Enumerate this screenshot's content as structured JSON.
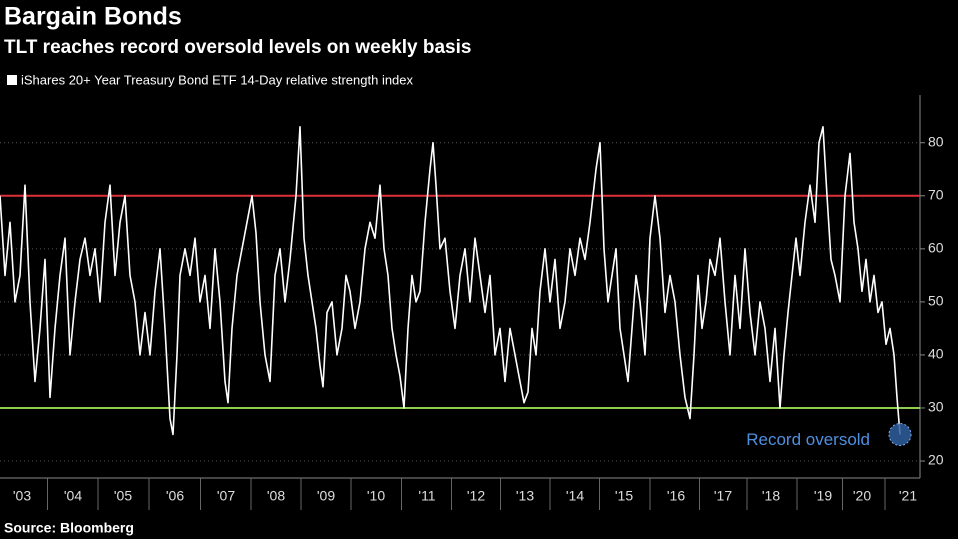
{
  "chart_data": {
    "type": "line",
    "title": "Bargain Bonds",
    "subtitle": "TLT reaches record oversold levels on weekly basis",
    "source": "Source: Bloomberg",
    "x": [
      2002.95,
      2003.05,
      2003.15,
      2003.25,
      2003.35,
      2003.45,
      2003.55,
      2003.65,
      2003.75,
      2003.85,
      2003.95,
      2004.05,
      2004.15,
      2004.25,
      2004.35,
      2004.45,
      2004.55,
      2004.65,
      2004.75,
      2004.85,
      2004.95,
      2005.05,
      2005.15,
      2005.25,
      2005.35,
      2005.45,
      2005.55,
      2005.65,
      2005.75,
      2005.85,
      2005.95,
      2006.05,
      2006.15,
      2006.25,
      2006.35,
      2006.41,
      2006.49,
      2006.55,
      2006.65,
      2006.75,
      2006.85,
      2006.95,
      2007.05,
      2007.15,
      2007.25,
      2007.35,
      2007.45,
      2007.51,
      2007.59,
      2007.69,
      2007.79,
      2007.89,
      2007.99,
      2008.07,
      2008.15,
      2008.25,
      2008.35,
      2008.45,
      2008.55,
      2008.65,
      2008.75,
      2008.87,
      2008.95,
      2009.03,
      2009.11,
      2009.19,
      2009.27,
      2009.35,
      2009.41,
      2009.49,
      2009.59,
      2009.69,
      2009.79,
      2009.87,
      2009.95,
      2010.05,
      2010.15,
      2010.25,
      2010.35,
      2010.45,
      2010.55,
      2010.63,
      2010.71,
      2010.79,
      2010.87,
      2010.95,
      2011.03,
      2011.11,
      2011.19,
      2011.27,
      2011.35,
      2011.45,
      2011.55,
      2011.61,
      2011.67,
      2011.75,
      2011.85,
      2011.95,
      2012.05,
      2012.15,
      2012.25,
      2012.35,
      2012.45,
      2012.55,
      2012.65,
      2012.75,
      2012.85,
      2012.95,
      2013.05,
      2013.15,
      2013.25,
      2013.35,
      2013.43,
      2013.51,
      2013.59,
      2013.67,
      2013.75,
      2013.85,
      2013.95,
      2014.05,
      2014.15,
      2014.25,
      2014.35,
      2014.45,
      2014.55,
      2014.65,
      2014.75,
      2014.87,
      2014.95,
      2015.03,
      2015.11,
      2015.19,
      2015.27,
      2015.35,
      2015.43,
      2015.51,
      2015.59,
      2015.67,
      2015.75,
      2015.85,
      2015.95,
      2016.05,
      2016.15,
      2016.25,
      2016.35,
      2016.45,
      2016.55,
      2016.65,
      2016.75,
      2016.83,
      2016.91,
      2016.99,
      2017.07,
      2017.15,
      2017.25,
      2017.35,
      2017.45,
      2017.55,
      2017.65,
      2017.75,
      2017.85,
      2017.95,
      2018.05,
      2018.15,
      2018.25,
      2018.35,
      2018.45,
      2018.55,
      2018.63,
      2018.71,
      2018.79,
      2018.87,
      2018.95,
      2019.05,
      2019.15,
      2019.25,
      2019.33,
      2019.41,
      2019.49,
      2019.57,
      2019.65,
      2019.75,
      2019.85,
      2019.95,
      2020.03,
      2020.11,
      2020.19,
      2020.27,
      2020.35,
      2020.43,
      2020.51,
      2020.59,
      2020.67,
      2020.75,
      2020.83,
      2020.89,
      2020.95
    ],
    "series": [
      {
        "name": "iShares 20+ Year Treasury Bond ETF 14-Day relative strength index",
        "color": "#ffffff",
        "values": [
          70,
          55,
          65,
          50,
          55,
          72,
          50,
          35,
          45,
          58,
          32,
          45,
          55,
          62,
          40,
          50,
          58,
          62,
          55,
          60,
          50,
          65,
          72,
          55,
          65,
          70,
          55,
          50,
          40,
          48,
          40,
          52,
          60,
          45,
          28,
          25,
          40,
          55,
          60,
          55,
          62,
          50,
          55,
          45,
          60,
          50,
          35,
          31,
          45,
          55,
          60,
          65,
          70,
          63,
          50,
          40,
          35,
          55,
          60,
          50,
          58,
          70,
          83,
          62,
          55,
          50,
          45,
          38,
          34,
          48,
          50,
          40,
          45,
          55,
          52,
          45,
          50,
          60,
          65,
          62,
          72,
          60,
          55,
          45,
          40,
          36,
          30,
          45,
          55,
          50,
          52,
          65,
          75,
          80,
          72,
          60,
          62,
          52,
          45,
          55,
          60,
          50,
          62,
          55,
          48,
          55,
          40,
          45,
          35,
          45,
          40,
          35,
          31,
          33,
          45,
          40,
          52,
          60,
          50,
          58,
          45,
          50,
          60,
          55,
          62,
          58,
          65,
          75,
          80,
          60,
          50,
          55,
          60,
          45,
          40,
          35,
          45,
          55,
          50,
          40,
          62,
          70,
          62,
          48,
          55,
          50,
          40,
          32,
          28,
          40,
          55,
          45,
          50,
          58,
          55,
          62,
          50,
          40,
          55,
          45,
          60,
          48,
          40,
          50,
          45,
          35,
          45,
          30,
          40,
          48,
          55,
          62,
          55,
          65,
          72,
          65,
          80,
          83,
          70,
          58,
          55,
          50,
          70,
          78,
          65,
          60,
          52,
          58,
          50,
          55,
          48,
          50,
          42,
          45,
          40,
          32,
          25
        ]
      }
    ],
    "xlim": [
      2002.95,
      2021.35
    ],
    "xticks": [
      {
        "value": 2003.39,
        "label": "'03"
      },
      {
        "value": 2004.41,
        "label": "'04"
      },
      {
        "value": 2005.41,
        "label": "'05"
      },
      {
        "value": 2006.45,
        "label": "'06"
      },
      {
        "value": 2007.47,
        "label": "'07"
      },
      {
        "value": 2008.47,
        "label": "'08"
      },
      {
        "value": 2009.47,
        "label": "'09"
      },
      {
        "value": 2010.47,
        "label": "'10"
      },
      {
        "value": 2011.49,
        "label": "'11"
      },
      {
        "value": 2012.47,
        "label": "'12"
      },
      {
        "value": 2013.45,
        "label": "'13"
      },
      {
        "value": 2014.45,
        "label": "'14"
      },
      {
        "value": 2015.43,
        "label": "'15"
      },
      {
        "value": 2016.47,
        "label": "'16"
      },
      {
        "value": 2017.41,
        "label": "'17"
      },
      {
        "value": 2018.37,
        "label": "'18"
      },
      {
        "value": 2019.41,
        "label": "'19"
      },
      {
        "value": 2020.19,
        "label": "'20"
      },
      {
        "value": 2021.11,
        "label": "'21"
      }
    ],
    "ylim": [
      16.8,
      89
    ],
    "yticks": [
      20,
      30,
      40,
      50,
      60,
      70,
      80
    ],
    "grid": true,
    "reference_lines": [
      {
        "value": 70,
        "color": "#e0303a"
      },
      {
        "value": 30,
        "color": "#8fd14f"
      }
    ],
    "annotation": {
      "text": "Record oversold",
      "color": "#4f8fe0"
    }
  }
}
